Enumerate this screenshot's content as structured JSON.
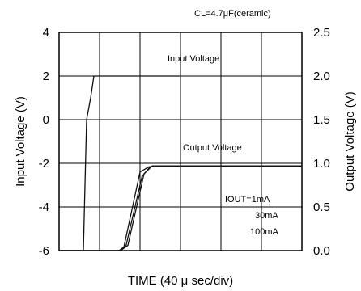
{
  "chart_data": {
    "type": "line",
    "title": "CL=4.7μF(ceramic)",
    "xlabel": "TIME (40 μ sec/div)",
    "ylabel_left": "Input Voltage (V)",
    "ylabel_right": "Output Voltage (V)",
    "x_divisions": 6,
    "y_left_range": [
      -6,
      4
    ],
    "y_left_ticks": [
      "4",
      "2",
      "0",
      "-2",
      "-4",
      "-6"
    ],
    "y_right_range": [
      0.0,
      2.5
    ],
    "y_right_ticks": [
      "2.5",
      "2.0",
      "1.5",
      "1.0",
      "0.5",
      "0.0"
    ],
    "grid": true,
    "annotations": {
      "input": "Input Voltage",
      "output": "Output Voltage",
      "load_header": "IOUT=1mA",
      "load_2": "30mA",
      "load_3": "100mA"
    },
    "series": [
      {
        "axis": "left",
        "x_div": [
          0.0,
          0.6,
          0.68,
          0.78,
          0.86,
          1.05,
          3.0
        ],
        "y": [
          -6,
          -6,
          0,
          1.0,
          2.0,
          2.0,
          2.0
        ]
      },
      {
        "axis": "right",
        "x_div": [
          0.0,
          1.5,
          1.65,
          2.05,
          2.25,
          6.0
        ],
        "y": [
          0.0,
          0.0,
          0.05,
          0.85,
          0.96,
          0.96
        ]
      },
      {
        "axis": "right",
        "x_div": [
          0.0,
          1.52,
          1.7,
          2.1,
          2.3,
          6.0
        ],
        "y": [
          0.0,
          0.0,
          0.06,
          0.88,
          0.97,
          0.97
        ]
      },
      {
        "axis": "right",
        "x_div": [
          0.0,
          1.48,
          1.6,
          2.0,
          2.22,
          6.0
        ],
        "y": [
          0.0,
          0.0,
          0.04,
          0.9,
          0.96,
          0.96
        ]
      }
    ]
  }
}
